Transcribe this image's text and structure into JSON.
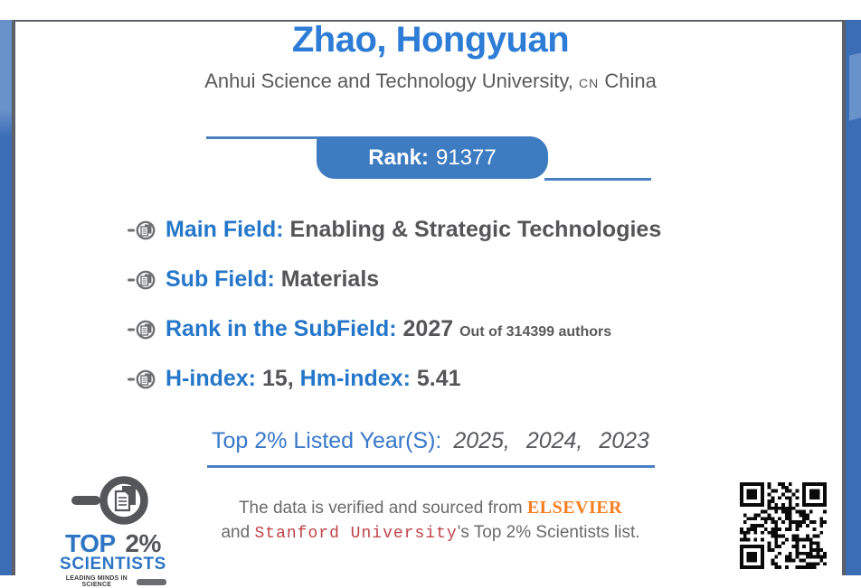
{
  "page": {
    "title": "Zhao, Hongyuan",
    "affiliation_prefix": "Anhui Science and Technology University,",
    "country_code": "CN",
    "country": "China"
  },
  "rank": {
    "label": "Rank:",
    "value": "91377"
  },
  "fields": [
    {
      "label": "Main Field:",
      "value": "Enabling & Strategic Technologies"
    },
    {
      "label": "Sub Field:",
      "value": "Materials"
    },
    {
      "label": "Rank in the SubField:",
      "value": "2027",
      "note": "Out of 314399 authors"
    },
    {
      "label1": "H-index:",
      "value1": "15,",
      "label2": "Hm-index:",
      "value2": "5.41"
    }
  ],
  "listed_years": {
    "label": "Top 2% Listed Year(S):",
    "values": "2025, 2024, 2023"
  },
  "verification": {
    "line1_prefix": "The data is verified and sourced from",
    "source1": "ELSEVIER",
    "line2_prefix": "and",
    "source2": "Stanford University",
    "line2_suffix": "'s Top 2% Scientists list."
  },
  "logo": {
    "word_top": "TOP",
    "word_percent": "2%",
    "word_scientists": "SCIENTISTS",
    "tagline": "LEADING MINDS IN SCIENCE"
  },
  "colors": {
    "title_blue": "#2d7cd6",
    "label_blue": "#2677c9",
    "banner_blue": "#3e7cc1",
    "underline_blue": "#4a80c2",
    "text_gray": "#555557",
    "frame_blue_dark": "#3a6db5",
    "frame_blue_light": "#6992cb",
    "border_gray": "#5d6066",
    "elsevier_orange": "#f57e20",
    "stanford_red": "#bd4247",
    "logo_blue": "#2e75c4",
    "logo_gray": "#55565a"
  }
}
